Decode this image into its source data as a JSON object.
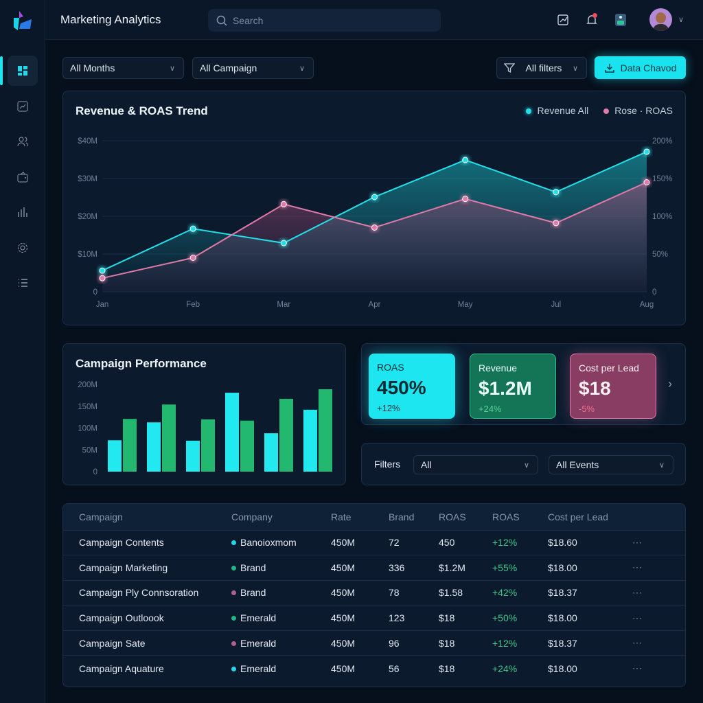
{
  "header": {
    "title": "Marketing Analytics",
    "search_placeholder": "Search"
  },
  "sidebar": {
    "items": [
      {
        "icon": "dashboard-icon",
        "active": true
      },
      {
        "icon": "trend-chart-icon"
      },
      {
        "icon": "users-icon"
      },
      {
        "icon": "wallet-icon"
      },
      {
        "icon": "bar-chart-icon"
      },
      {
        "icon": "settings-icon"
      },
      {
        "icon": "list-icon"
      }
    ]
  },
  "toolbar": {
    "months": "All Months",
    "campaign": "All Campaign",
    "filters": "All filters",
    "export": "Data Chavod"
  },
  "colors": {
    "accent": "#19e3ef",
    "green": "#22b86f",
    "pink": "#e07aa8"
  },
  "chart_data": [
    {
      "type": "line",
      "title": "Revenue & ROAS Trend",
      "categories": [
        "Jan",
        "Feb",
        "Mar",
        "Apr",
        "May",
        "Jul",
        "Aug"
      ],
      "y_left": {
        "ticks": [
          "0",
          "$10M",
          "$20M",
          "$30M",
          "$40M"
        ],
        "range": [
          0,
          40
        ]
      },
      "y_right": {
        "ticks": [
          "0",
          "50%",
          "100%",
          "150%",
          "200%"
        ],
        "range": [
          0,
          200
        ]
      },
      "series": [
        {
          "name": "Revenue All",
          "axis": "left",
          "unit": "$M",
          "values": [
            5.6,
            16.7,
            12.9,
            25.1,
            34.9,
            26.4,
            37.1
          ],
          "color": "#22e0ea"
        },
        {
          "name": "Rose · ROAS",
          "axis": "right",
          "unit": "%",
          "values": [
            18,
            45,
            116,
            85,
            123,
            91,
            145
          ],
          "color": "#e07aa8"
        }
      ],
      "legend": "top-right",
      "grid": true
    },
    {
      "type": "bar",
      "title": "Campaign Performance",
      "y_ticks": [
        "0",
        "50M",
        "100M",
        "150M",
        "200M"
      ],
      "ylim": [
        0,
        200
      ],
      "series": [
        {
          "values": [
            72,
            113,
            71,
            181,
            88,
            142
          ],
          "color": "#22e8ef"
        },
        {
          "values": [
            121,
            154,
            120,
            117,
            167,
            189
          ],
          "color": "#22b86f"
        }
      ]
    }
  ],
  "kpis": [
    {
      "label": "ROAS",
      "value": "450%",
      "change": "+12%"
    },
    {
      "label": "Revenue",
      "value": "$1.2M",
      "change": "+24%"
    },
    {
      "label": "Cost per Lead",
      "value": "$18",
      "change": "-5%"
    }
  ],
  "filters": {
    "label": "Filters",
    "first": "All",
    "second": "All Events"
  },
  "table": {
    "headers": [
      "Campaign",
      "Company",
      "Rate",
      "Brand",
      "ROAS",
      "ROAS",
      "Cost per Lead"
    ],
    "rows": [
      [
        "Campaign Contents",
        "Banoioxmom",
        "450M",
        "72",
        "450",
        "+12%",
        "$18.60",
        "#22d8ea"
      ],
      [
        "Campaign Marketing",
        "Brand",
        "450M",
        "336",
        "$1.2M",
        "+55%",
        "$18.00",
        "#22b886"
      ],
      [
        "Campaign Ply Connsoration",
        "Brand",
        "450M",
        "78",
        "$1.58",
        "+42%",
        "$18.37",
        "#b0608e"
      ],
      [
        "Campaign Outloook",
        "Emerald",
        "450M",
        "123",
        "$18",
        "+50%",
        "$18.00",
        "#22b886"
      ],
      [
        "Campaign Sate",
        "Emerald",
        "450M",
        "96",
        "$18",
        "+12%",
        "$18.37",
        "#b0608e"
      ],
      [
        "Campaign Aquature",
        "Emerald",
        "450M",
        "56",
        "$18",
        "+24%",
        "$18.00",
        "#22d8ea"
      ]
    ]
  }
}
